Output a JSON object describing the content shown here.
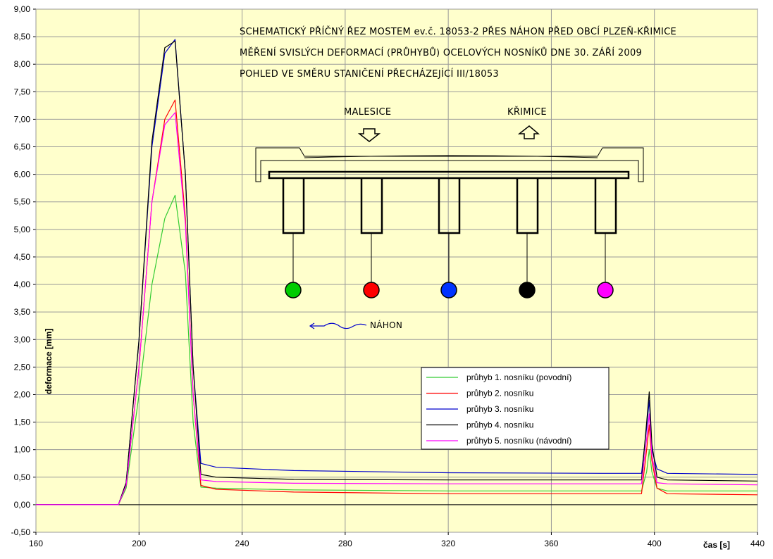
{
  "chart_data": {
    "type": "line",
    "title_lines": [
      "SCHEMATICKÝ PŘÍČNÝ ŘEZ MOSTEM ev.č. 18053-2 PŘES NÁHON PŘED OBCÍ PLZEŇ-KŘIMICE",
      "MĚŘENÍ SVISLÝCH DEFORMACÍ (PRŮHYBŮ) OCELOVÝCH NOSNÍKŮ DNE 30. ZÁŘÍ 2009",
      "POHLED VE SMĚRU STANIČENÍ PŘECHÁZEJÍCÍ III/18053"
    ],
    "xlabel": "čas [s]",
    "ylabel": "deformace [mm]",
    "xlim": [
      160,
      440
    ],
    "ylim": [
      -0.5,
      9.0
    ],
    "x_ticks": [
      "160",
      "200",
      "240",
      "280",
      "320",
      "360",
      "400",
      "440"
    ],
    "y_ticks": [
      "-0,50",
      "0,00",
      "0,50",
      "1,00",
      "1,50",
      "2,00",
      "2,50",
      "3,00",
      "3,50",
      "4,00",
      "4,50",
      "5,00",
      "5,50",
      "6,00",
      "6,50",
      "7,00",
      "7,50",
      "8,00",
      "8,50",
      "9,00"
    ],
    "grid": true,
    "legend_position": "right-middle",
    "series": [
      {
        "name": "průhyb 1. nosníku (povodní)",
        "color": "#33cc33",
        "x": [
          160,
          192,
          195,
          200,
          205,
          210,
          214,
          218,
          221,
          224,
          230,
          260,
          320,
          380,
          395,
          397,
          398,
          399,
          401,
          405,
          440
        ],
        "y": [
          0.0,
          0.0,
          0.3,
          2.0,
          4.0,
          5.2,
          5.62,
          4.2,
          1.5,
          0.32,
          0.3,
          0.27,
          0.25,
          0.25,
          0.25,
          0.6,
          1.0,
          0.6,
          0.3,
          0.25,
          0.25
        ]
      },
      {
        "name": "průhyb 2. nosníku",
        "color": "#ff0000",
        "x": [
          160,
          192,
          195,
          200,
          205,
          210,
          214,
          218,
          221,
          224,
          230,
          260,
          320,
          380,
          395,
          397,
          398,
          399,
          401,
          405,
          440
        ],
        "y": [
          0.0,
          0.0,
          0.35,
          2.5,
          5.5,
          7.0,
          7.35,
          5.2,
          2.0,
          0.35,
          0.28,
          0.23,
          0.2,
          0.2,
          0.2,
          1.0,
          1.45,
          0.8,
          0.3,
          0.2,
          0.18
        ]
      },
      {
        "name": "průhyb 3. nosníku",
        "color": "#0000cc",
        "x": [
          160,
          192,
          195,
          200,
          205,
          210,
          214,
          218,
          221,
          224,
          230,
          260,
          320,
          380,
          395,
          397,
          398,
          399,
          401,
          405,
          440
        ],
        "y": [
          0.0,
          0.0,
          0.4,
          3.0,
          6.5,
          8.2,
          8.45,
          6.0,
          2.5,
          0.75,
          0.68,
          0.62,
          0.58,
          0.57,
          0.57,
          1.4,
          1.9,
          1.0,
          0.65,
          0.57,
          0.55
        ]
      },
      {
        "name": "průhyb 4. nosníku",
        "color": "#000000",
        "x": [
          160,
          192,
          195,
          200,
          205,
          210,
          214,
          218,
          221,
          224,
          230,
          260,
          320,
          380,
          395,
          397,
          398,
          399,
          401,
          405,
          440
        ],
        "y": [
          0.0,
          0.0,
          0.4,
          3.0,
          6.6,
          8.3,
          8.42,
          6.0,
          2.5,
          0.55,
          0.5,
          0.46,
          0.45,
          0.45,
          0.45,
          1.5,
          2.05,
          1.1,
          0.5,
          0.45,
          0.43
        ]
      },
      {
        "name": "průhyb 5. nosníku (návodní)",
        "color": "#ff00ff",
        "x": [
          160,
          192,
          195,
          200,
          205,
          210,
          214,
          218,
          221,
          224,
          230,
          260,
          320,
          380,
          395,
          397,
          398,
          399,
          401,
          405,
          440
        ],
        "y": [
          0.0,
          0.0,
          0.35,
          2.5,
          5.5,
          6.9,
          7.12,
          5.1,
          2.0,
          0.45,
          0.42,
          0.39,
          0.38,
          0.38,
          0.38,
          1.2,
          1.65,
          0.9,
          0.4,
          0.38,
          0.36
        ]
      }
    ],
    "annotations": [
      "MALESICE",
      "KŘIMICE",
      "NÁHON"
    ]
  }
}
